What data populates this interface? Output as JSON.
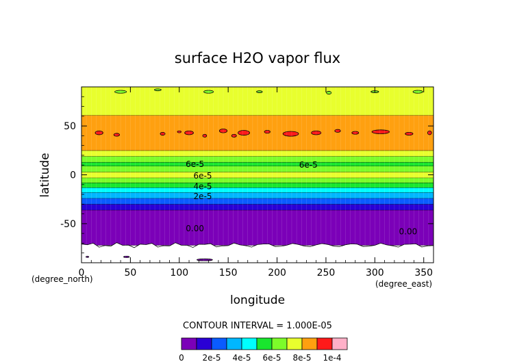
{
  "chart_data": {
    "type": "contour",
    "title": "surface H2O vapor flux",
    "xlabel": "longitude",
    "ylabel": "latitude",
    "x_unit": "(degree_east)",
    "y_unit": "(degree_north)",
    "xlim": [
      0,
      360
    ],
    "ylim": [
      -90,
      90
    ],
    "x_ticks": [
      0,
      50,
      100,
      150,
      200,
      250,
      300,
      350
    ],
    "y_ticks": [
      -50,
      0,
      50
    ],
    "contour_interval_text": "CONTOUR INTERVAL = 1.000E-05",
    "levels": [
      0,
      1e-05,
      2e-05,
      3e-05,
      4e-05,
      5e-05,
      6e-05,
      7e-05,
      8e-05,
      9e-05,
      0.0001
    ],
    "level_colors": [
      "#7b00b8",
      "#2a00d5",
      "#0a5cff",
      "#00b7ff",
      "#00ffff",
      "#19e62e",
      "#7cfc2a",
      "#e8ff2e",
      "#ffa010",
      "#ff1a1a",
      "#ffb0c8"
    ],
    "colorbar_ticks": [
      "0",
      "2e-5",
      "4e-5",
      "6e-5",
      "8e-5",
      "1e-4"
    ],
    "zonal_bands": [
      {
        "lat_from": -90,
        "lat_to": -72,
        "level_index": -1
      },
      {
        "lat_from": -72,
        "lat_to": -36,
        "level_index": 0
      },
      {
        "lat_from": -36,
        "lat_to": -30,
        "level_index": 1
      },
      {
        "lat_from": -30,
        "lat_to": -24,
        "level_index": 2
      },
      {
        "lat_from": -24,
        "lat_to": -18,
        "level_index": 3
      },
      {
        "lat_from": -18,
        "lat_to": -13,
        "level_index": 4
      },
      {
        "lat_from": -13,
        "lat_to": -8,
        "level_index": 5
      },
      {
        "lat_from": -8,
        "lat_to": -3,
        "level_index": 6
      },
      {
        "lat_from": -3,
        "lat_to": 3,
        "level_index": 7
      },
      {
        "lat_from": 3,
        "lat_to": 9,
        "level_index": 6
      },
      {
        "lat_from": 9,
        "lat_to": 13,
        "level_index": 5
      },
      {
        "lat_from": 13,
        "lat_to": 19,
        "level_index": 6
      },
      {
        "lat_from": 19,
        "lat_to": 25,
        "level_index": 7
      },
      {
        "lat_from": 25,
        "lat_to": 61,
        "level_index": 8
      },
      {
        "lat_from": 61,
        "lat_to": 90,
        "level_index": 7
      }
    ],
    "red_patches": [
      {
        "lon": 18,
        "lat": 43,
        "w": 8,
        "h": 4
      },
      {
        "lon": 36,
        "lat": 41,
        "w": 6,
        "h": 3
      },
      {
        "lon": 83,
        "lat": 42,
        "w": 5,
        "h": 3
      },
      {
        "lon": 100,
        "lat": 44,
        "w": 4,
        "h": 2
      },
      {
        "lon": 110,
        "lat": 43,
        "w": 9,
        "h": 4
      },
      {
        "lon": 126,
        "lat": 40,
        "w": 4,
        "h": 3
      },
      {
        "lon": 145,
        "lat": 45,
        "w": 8,
        "h": 4
      },
      {
        "lon": 156,
        "lat": 40,
        "w": 5,
        "h": 3
      },
      {
        "lon": 166,
        "lat": 43,
        "w": 12,
        "h": 5
      },
      {
        "lon": 190,
        "lat": 44,
        "w": 6,
        "h": 3
      },
      {
        "lon": 214,
        "lat": 42,
        "w": 16,
        "h": 5
      },
      {
        "lon": 240,
        "lat": 43,
        "w": 10,
        "h": 4
      },
      {
        "lon": 262,
        "lat": 45,
        "w": 6,
        "h": 3
      },
      {
        "lon": 280,
        "lat": 43,
        "w": 7,
        "h": 3
      },
      {
        "lon": 306,
        "lat": 44,
        "w": 18,
        "h": 4
      },
      {
        "lon": 335,
        "lat": 42,
        "w": 8,
        "h": 3
      },
      {
        "lon": 356,
        "lat": 43,
        "w": 4,
        "h": 4
      }
    ],
    "green_patches": [
      {
        "lon": 40,
        "lat": 85,
        "w": 12,
        "h": 3
      },
      {
        "lon": 78,
        "lat": 87,
        "w": 7,
        "h": 2
      },
      {
        "lon": 130,
        "lat": 85,
        "w": 10,
        "h": 3
      },
      {
        "lon": 182,
        "lat": 85,
        "w": 6,
        "h": 2
      },
      {
        "lon": 253,
        "lat": 84,
        "w": 5,
        "h": 3
      },
      {
        "lon": 300,
        "lat": 85,
        "w": 8,
        "h": 2
      },
      {
        "lon": 344,
        "lat": 85,
        "w": 10,
        "h": 3
      }
    ],
    "purple_islands": [
      {
        "lon": 46,
        "lat": -84,
        "w": 6,
        "h": 1.5
      },
      {
        "lon": 126,
        "lat": -87,
        "w": 16,
        "h": 2
      },
      {
        "lon": 6,
        "lat": -84,
        "w": 3,
        "h": 1.2
      }
    ],
    "contour_labels": [
      {
        "text": "6e-5",
        "lon": 116,
        "lat": 11
      },
      {
        "text": "6e-5",
        "lon": 232,
        "lat": 10
      },
      {
        "text": "6e-5",
        "lon": 124,
        "lat": -1
      },
      {
        "text": "4e-5",
        "lon": 124,
        "lat": -12
      },
      {
        "text": "2e-5",
        "lon": 124,
        "lat": -22
      },
      {
        "text": "0.00",
        "lon": 116,
        "lat": -55
      },
      {
        "text": "0.00",
        "lon": 334,
        "lat": -58
      }
    ]
  }
}
